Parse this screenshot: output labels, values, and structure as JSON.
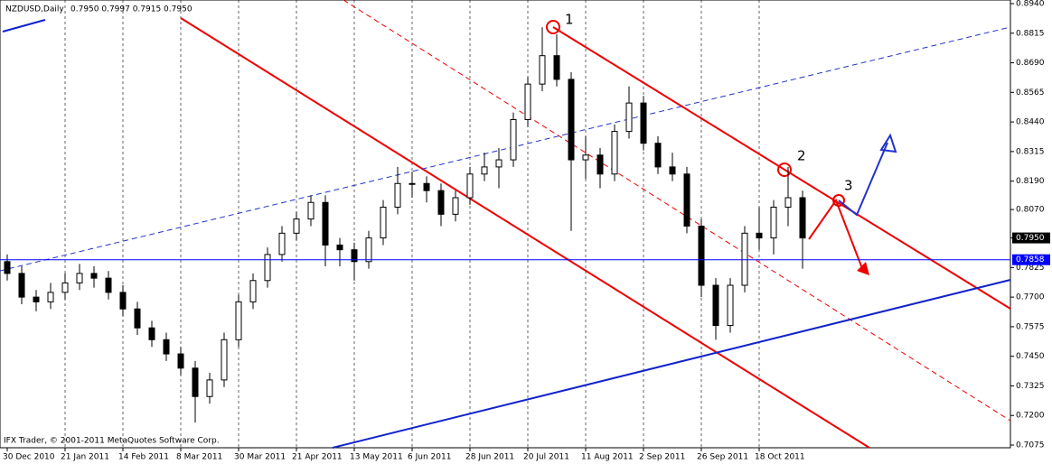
{
  "chart_data": {
    "type": "candlestick",
    "title": "NZDUSD,Daily",
    "subtitle": "0.7950 0.7997 0.7915 0.7950",
    "footer": "IFX Trader, © 2001-2011 MetaQuotes Software Corp.",
    "categories": [
      "30 Dec 2010",
      null,
      null,
      null,
      "21 Jan 2011",
      null,
      null,
      null,
      "14 Feb 2011",
      null,
      null,
      null,
      "8 Mar 2011",
      null,
      null,
      null,
      "30 Mar 2011",
      null,
      null,
      null,
      "21 Apr 2011",
      null,
      null,
      null,
      "13 May 2011",
      null,
      null,
      null,
      "6 Jun 2011",
      null,
      null,
      null,
      "28 Jun 2011",
      null,
      null,
      null,
      "20 Jul 2011",
      null,
      null,
      null,
      "11 Aug 2011",
      null,
      null,
      null,
      "2 Sep 2011",
      null,
      null,
      null,
      "26 Sep 2011",
      null,
      null,
      null,
      "18 Oct 2011",
      null,
      null,
      null
    ],
    "open": [
      0.785,
      0.78,
      0.77,
      0.768,
      0.772,
      0.776,
      0.78,
      0.778,
      0.772,
      0.765,
      0.757,
      0.752,
      0.746,
      0.74,
      0.728,
      0.735,
      0.752,
      0.768,
      0.777,
      0.788,
      0.797,
      0.803,
      0.81,
      0.792,
      0.79,
      0.785,
      0.795,
      0.808,
      0.818,
      0.818,
      0.815,
      0.805,
      0.812,
      0.822,
      0.825,
      0.828,
      0.845,
      0.86,
      0.872,
      0.862,
      0.828,
      0.83,
      0.822,
      0.84,
      0.852,
      0.835,
      0.825,
      0.822,
      0.8,
      0.775,
      0.758,
      0.775,
      0.797,
      0.795,
      0.808,
      0.812
    ],
    "high": [
      0.788,
      0.783,
      0.773,
      0.776,
      0.78,
      0.784,
      0.783,
      0.781,
      0.775,
      0.768,
      0.76,
      0.755,
      0.749,
      0.743,
      0.738,
      0.755,
      0.771,
      0.78,
      0.791,
      0.8,
      0.806,
      0.813,
      0.813,
      0.795,
      0.793,
      0.798,
      0.811,
      0.825,
      0.823,
      0.821,
      0.818,
      0.815,
      0.825,
      0.831,
      0.833,
      0.848,
      0.863,
      0.884,
      0.881,
      0.865,
      0.838,
      0.833,
      0.843,
      0.859,
      0.855,
      0.838,
      0.831,
      0.825,
      0.803,
      0.778,
      0.778,
      0.8,
      0.808,
      0.811,
      0.825,
      0.815
    ],
    "low": [
      0.777,
      0.767,
      0.764,
      0.765,
      0.769,
      0.773,
      0.774,
      0.769,
      0.762,
      0.754,
      0.749,
      0.743,
      0.737,
      0.717,
      0.725,
      0.732,
      0.749,
      0.765,
      0.774,
      0.785,
      0.794,
      0.8,
      0.783,
      0.783,
      0.777,
      0.782,
      0.792,
      0.805,
      0.812,
      0.81,
      0.8,
      0.802,
      0.809,
      0.819,
      0.816,
      0.825,
      0.842,
      0.857,
      0.859,
      0.798,
      0.82,
      0.816,
      0.819,
      0.837,
      0.832,
      0.822,
      0.819,
      0.797,
      0.77,
      0.752,
      0.755,
      0.772,
      0.79,
      0.788,
      0.8,
      0.782
    ],
    "close": [
      0.78,
      0.77,
      0.768,
      0.772,
      0.776,
      0.78,
      0.778,
      0.772,
      0.765,
      0.757,
      0.752,
      0.746,
      0.74,
      0.728,
      0.735,
      0.752,
      0.768,
      0.777,
      0.788,
      0.797,
      0.803,
      0.81,
      0.792,
      0.79,
      0.785,
      0.795,
      0.808,
      0.818,
      0.818,
      0.815,
      0.805,
      0.812,
      0.822,
      0.825,
      0.828,
      0.845,
      0.86,
      0.872,
      0.862,
      0.828,
      0.83,
      0.822,
      0.84,
      0.852,
      0.835,
      0.825,
      0.822,
      0.8,
      0.775,
      0.758,
      0.775,
      0.797,
      0.795,
      0.808,
      0.812,
      0.795
    ],
    "up_color": "#ffffff",
    "down_color": "#000000",
    "ylim": [
      0.7075,
      0.894
    ],
    "yticks": [
      {
        "value": 0.894,
        "label": "0.8940"
      },
      0.8815,
      {
        "value": 0.869,
        "label": "0.8690"
      },
      0.8565,
      {
        "value": 0.844,
        "label": "0.8440"
      },
      0.8315,
      {
        "value": 0.819,
        "label": "0.8190"
      },
      {
        "value": 0.807,
        "label": "0.8070"
      },
      {
        "value": 0.795,
        "label": "0.7950"
      },
      0.7825,
      {
        "value": 0.77,
        "label": "0.7700"
      },
      0.7575,
      {
        "value": 0.745,
        "label": "0.7450"
      },
      0.7325,
      {
        "value": 0.72,
        "label": "0.7200"
      },
      0.7075
    ],
    "price_markers": [
      {
        "value": 0.795,
        "label": "0.7950",
        "color": "#000000"
      },
      {
        "value": 0.7858,
        "label": "0.7858",
        "color": "#0000ff"
      }
    ],
    "annotations": [
      "1",
      "2",
      "3"
    ],
    "grid": true
  }
}
